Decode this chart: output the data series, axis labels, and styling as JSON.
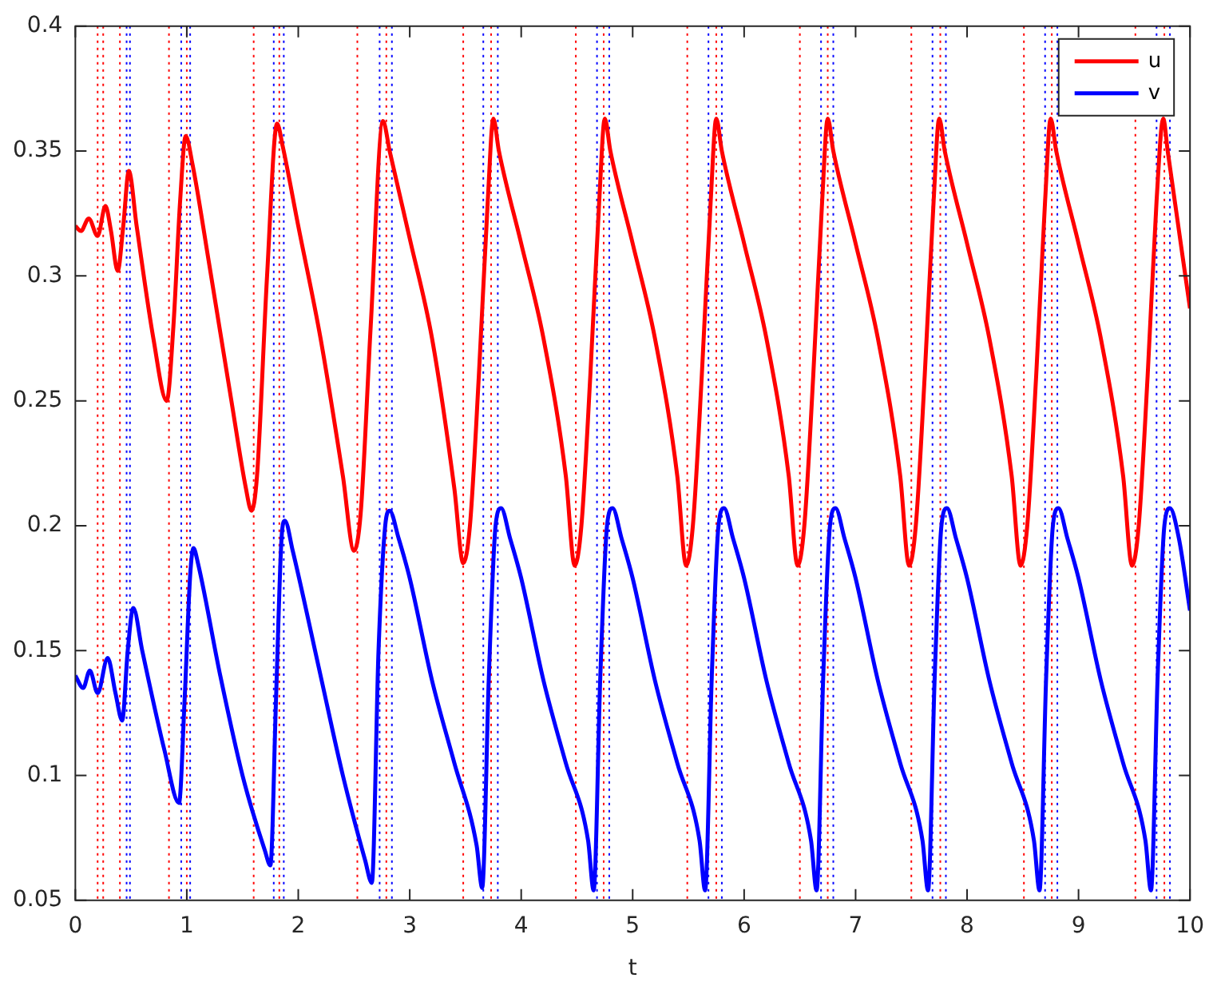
{
  "chart_data": {
    "type": "line",
    "xlabel": "t",
    "xlim": [
      0,
      10
    ],
    "xticks": [
      0,
      1,
      2,
      3,
      4,
      5,
      6,
      7,
      8,
      9,
      10
    ],
    "ylim": [
      0.05,
      0.4
    ],
    "yticks": [
      0.05,
      0.1,
      0.15,
      0.2,
      0.25,
      0.3,
      0.35,
      0.4
    ],
    "grid": false,
    "legend": "top right",
    "marker": "none",
    "line_style": "solid",
    "series": [
      {
        "name": "u",
        "color": "#ff0000",
        "x": [
          0,
          0.05,
          0.12,
          0.2,
          0.27,
          0.32,
          0.38,
          0.43,
          0.48,
          0.55,
          0.7,
          0.82,
          0.88,
          0.94,
          0.99,
          1.05,
          1.2,
          1.4,
          1.53,
          1.58,
          1.63,
          1.72,
          1.81,
          1.86,
          2.0,
          2.2,
          2.4,
          2.5,
          2.56,
          2.65,
          2.76,
          2.82,
          3.0,
          3.2,
          3.4,
          3.48,
          3.54,
          3.62,
          3.7,
          3.75,
          3.8,
          4.0,
          4.2,
          4.4,
          4.48,
          4.54,
          4.62,
          4.7,
          4.75,
          4.8,
          5.0,
          5.2,
          5.4,
          5.48,
          5.54,
          5.62,
          5.7,
          5.75,
          5.8,
          6.0,
          6.2,
          6.4,
          6.48,
          6.54,
          6.62,
          6.7,
          6.75,
          6.8,
          7.0,
          7.2,
          7.4,
          7.48,
          7.54,
          7.62,
          7.7,
          7.75,
          7.8,
          8.0,
          8.2,
          8.4,
          8.48,
          8.54,
          8.62,
          8.7,
          8.75,
          8.8,
          9.0,
          9.2,
          9.4,
          9.48,
          9.54,
          9.62,
          9.7,
          9.76,
          9.8,
          10
        ],
        "values": [
          0.32,
          0.318,
          0.323,
          0.316,
          0.328,
          0.318,
          0.302,
          0.32,
          0.342,
          0.32,
          0.275,
          0.25,
          0.28,
          0.33,
          0.356,
          0.345,
          0.305,
          0.25,
          0.215,
          0.206,
          0.22,
          0.3,
          0.361,
          0.352,
          0.32,
          0.275,
          0.22,
          0.19,
          0.205,
          0.28,
          0.362,
          0.35,
          0.315,
          0.275,
          0.215,
          0.185,
          0.2,
          0.26,
          0.33,
          0.363,
          0.35,
          0.313,
          0.275,
          0.22,
          0.184,
          0.2,
          0.26,
          0.33,
          0.363,
          0.35,
          0.313,
          0.275,
          0.22,
          0.184,
          0.2,
          0.26,
          0.33,
          0.363,
          0.35,
          0.313,
          0.275,
          0.22,
          0.184,
          0.2,
          0.26,
          0.33,
          0.363,
          0.35,
          0.313,
          0.275,
          0.22,
          0.184,
          0.2,
          0.26,
          0.33,
          0.363,
          0.35,
          0.313,
          0.275,
          0.22,
          0.184,
          0.2,
          0.26,
          0.33,
          0.363,
          0.35,
          0.313,
          0.275,
          0.22,
          0.184,
          0.2,
          0.26,
          0.33,
          0.363,
          0.35,
          0.287
        ]
      },
      {
        "name": "v",
        "color": "#0000ff",
        "x": [
          0,
          0.07,
          0.13,
          0.2,
          0.29,
          0.36,
          0.42,
          0.47,
          0.52,
          0.6,
          0.8,
          0.93,
          0.98,
          1.03,
          1.06,
          1.1,
          1.3,
          1.5,
          1.7,
          1.75,
          1.8,
          1.85,
          1.88,
          1.95,
          2.2,
          2.4,
          2.6,
          2.66,
          2.72,
          2.78,
          2.82,
          2.9,
          3.0,
          3.2,
          3.4,
          3.6,
          3.65,
          3.71,
          3.77,
          3.82,
          3.9,
          4.0,
          4.2,
          4.4,
          4.6,
          4.65,
          4.71,
          4.77,
          4.82,
          4.9,
          5.0,
          5.2,
          5.4,
          5.6,
          5.65,
          5.71,
          5.77,
          5.82,
          5.9,
          6.0,
          6.2,
          6.4,
          6.6,
          6.65,
          6.71,
          6.77,
          6.82,
          6.9,
          7.0,
          7.2,
          7.4,
          7.6,
          7.65,
          7.71,
          7.77,
          7.82,
          7.9,
          8.0,
          8.2,
          8.4,
          8.6,
          8.65,
          8.71,
          8.77,
          8.82,
          8.9,
          9.0,
          9.2,
          9.4,
          9.6,
          9.65,
          9.71,
          9.77,
          9.82,
          9.9,
          10
        ],
        "values": [
          0.14,
          0.135,
          0.142,
          0.133,
          0.147,
          0.133,
          0.122,
          0.15,
          0.167,
          0.15,
          0.11,
          0.089,
          0.13,
          0.18,
          0.191,
          0.185,
          0.14,
          0.1,
          0.07,
          0.064,
          0.13,
          0.195,
          0.202,
          0.19,
          0.14,
          0.1,
          0.066,
          0.057,
          0.15,
          0.2,
          0.206,
          0.195,
          0.179,
          0.138,
          0.105,
          0.072,
          0.055,
          0.14,
          0.2,
          0.207,
          0.195,
          0.179,
          0.138,
          0.105,
          0.074,
          0.054,
          0.14,
          0.2,
          0.207,
          0.195,
          0.179,
          0.138,
          0.105,
          0.074,
          0.054,
          0.14,
          0.2,
          0.207,
          0.195,
          0.179,
          0.138,
          0.105,
          0.074,
          0.054,
          0.14,
          0.2,
          0.207,
          0.195,
          0.179,
          0.138,
          0.105,
          0.074,
          0.054,
          0.14,
          0.2,
          0.207,
          0.195,
          0.179,
          0.138,
          0.105,
          0.074,
          0.054,
          0.14,
          0.2,
          0.207,
          0.195,
          0.179,
          0.138,
          0.105,
          0.074,
          0.054,
          0.14,
          0.2,
          0.207,
          0.195,
          0.166
        ]
      }
    ],
    "ref_lines": [
      {
        "axis": "x",
        "value": 0.2,
        "color": "#ff0000",
        "line_style": "dotted"
      },
      {
        "axis": "x",
        "value": 0.25,
        "color": "#ff0000",
        "line_style": "dotted"
      },
      {
        "axis": "x",
        "value": 0.4,
        "color": "#ff0000",
        "line_style": "dotted"
      },
      {
        "axis": "x",
        "value": 0.84,
        "color": "#ff0000",
        "line_style": "dotted"
      },
      {
        "axis": "x",
        "value": 1.0,
        "color": "#ff0000",
        "line_style": "dotted"
      },
      {
        "axis": "x",
        "value": 1.6,
        "color": "#ff0000",
        "line_style": "dotted"
      },
      {
        "axis": "x",
        "value": 1.83,
        "color": "#ff0000",
        "line_style": "dotted"
      },
      {
        "axis": "x",
        "value": 2.53,
        "color": "#ff0000",
        "line_style": "dotted"
      },
      {
        "axis": "x",
        "value": 2.79,
        "color": "#ff0000",
        "line_style": "dotted"
      },
      {
        "axis": "x",
        "value": 3.48,
        "color": "#ff0000",
        "line_style": "dotted"
      },
      {
        "axis": "x",
        "value": 3.73,
        "color": "#ff0000",
        "line_style": "dotted"
      },
      {
        "axis": "x",
        "value": 4.49,
        "color": "#ff0000",
        "line_style": "dotted"
      },
      {
        "axis": "x",
        "value": 4.74,
        "color": "#ff0000",
        "line_style": "dotted"
      },
      {
        "axis": "x",
        "value": 5.49,
        "color": "#ff0000",
        "line_style": "dotted"
      },
      {
        "axis": "x",
        "value": 5.75,
        "color": "#ff0000",
        "line_style": "dotted"
      },
      {
        "axis": "x",
        "value": 6.5,
        "color": "#ff0000",
        "line_style": "dotted"
      },
      {
        "axis": "x",
        "value": 6.75,
        "color": "#ff0000",
        "line_style": "dotted"
      },
      {
        "axis": "x",
        "value": 7.5,
        "color": "#ff0000",
        "line_style": "dotted"
      },
      {
        "axis": "x",
        "value": 7.76,
        "color": "#ff0000",
        "line_style": "dotted"
      },
      {
        "axis": "x",
        "value": 8.51,
        "color": "#ff0000",
        "line_style": "dotted"
      },
      {
        "axis": "x",
        "value": 8.76,
        "color": "#ff0000",
        "line_style": "dotted"
      },
      {
        "axis": "x",
        "value": 9.51,
        "color": "#ff0000",
        "line_style": "dotted"
      },
      {
        "axis": "x",
        "value": 9.77,
        "color": "#ff0000",
        "line_style": "dotted"
      },
      {
        "axis": "x",
        "value": 0.46,
        "color": "#0000ff",
        "line_style": "dotted"
      },
      {
        "axis": "x",
        "value": 0.49,
        "color": "#0000ff",
        "line_style": "dotted"
      },
      {
        "axis": "x",
        "value": 0.95,
        "color": "#0000ff",
        "line_style": "dotted"
      },
      {
        "axis": "x",
        "value": 1.03,
        "color": "#0000ff",
        "line_style": "dotted"
      },
      {
        "axis": "x",
        "value": 1.78,
        "color": "#0000ff",
        "line_style": "dotted"
      },
      {
        "axis": "x",
        "value": 1.87,
        "color": "#0000ff",
        "line_style": "dotted"
      },
      {
        "axis": "x",
        "value": 2.73,
        "color": "#0000ff",
        "line_style": "dotted"
      },
      {
        "axis": "x",
        "value": 2.84,
        "color": "#0000ff",
        "line_style": "dotted"
      },
      {
        "axis": "x",
        "value": 3.66,
        "color": "#0000ff",
        "line_style": "dotted"
      },
      {
        "axis": "x",
        "value": 3.79,
        "color": "#0000ff",
        "line_style": "dotted"
      },
      {
        "axis": "x",
        "value": 4.68,
        "color": "#0000ff",
        "line_style": "dotted"
      },
      {
        "axis": "x",
        "value": 4.79,
        "color": "#0000ff",
        "line_style": "dotted"
      },
      {
        "axis": "x",
        "value": 5.68,
        "color": "#0000ff",
        "line_style": "dotted"
      },
      {
        "axis": "x",
        "value": 5.8,
        "color": "#0000ff",
        "line_style": "dotted"
      },
      {
        "axis": "x",
        "value": 6.69,
        "color": "#0000ff",
        "line_style": "dotted"
      },
      {
        "axis": "x",
        "value": 6.8,
        "color": "#0000ff",
        "line_style": "dotted"
      },
      {
        "axis": "x",
        "value": 7.69,
        "color": "#0000ff",
        "line_style": "dotted"
      },
      {
        "axis": "x",
        "value": 7.81,
        "color": "#0000ff",
        "line_style": "dotted"
      },
      {
        "axis": "x",
        "value": 8.7,
        "color": "#0000ff",
        "line_style": "dotted"
      },
      {
        "axis": "x",
        "value": 8.81,
        "color": "#0000ff",
        "line_style": "dotted"
      },
      {
        "axis": "x",
        "value": 9.7,
        "color": "#0000ff",
        "line_style": "dotted"
      },
      {
        "axis": "x",
        "value": 9.82,
        "color": "#0000ff",
        "line_style": "dotted"
      }
    ]
  }
}
